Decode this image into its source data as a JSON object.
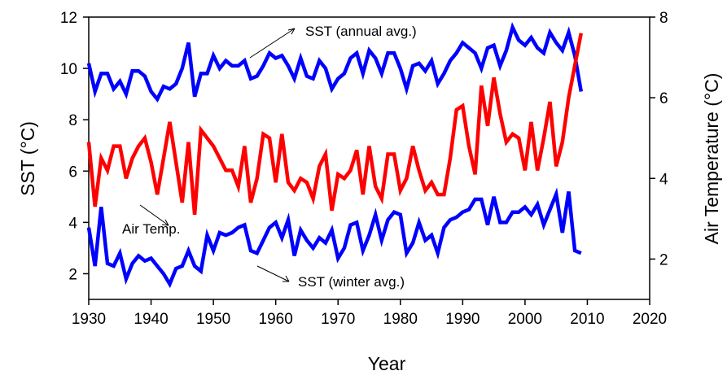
{
  "chart_data": {
    "type": "line",
    "xlabel": "Year",
    "ylabel_left": "SST (°C)",
    "ylabel_right": "Air Temperature (°C)",
    "xlim": [
      1930,
      2020
    ],
    "ylim_left": [
      1,
      12
    ],
    "ylim_right": [
      1,
      8
    ],
    "x_ticks": [
      "1930",
      "1940",
      "1950",
      "1960",
      "1970",
      "1980",
      "1990",
      "2000",
      "2010",
      "2020"
    ],
    "y_ticks_left": [
      "2",
      "4",
      "6",
      "8",
      "10",
      "12"
    ],
    "y_ticks_right": [
      "2",
      "4",
      "6",
      "8"
    ],
    "grid": false,
    "x": [
      1930,
      1931,
      1932,
      1933,
      1934,
      1935,
      1936,
      1937,
      1938,
      1939,
      1940,
      1941,
      1942,
      1943,
      1944,
      1945,
      1946,
      1947,
      1948,
      1949,
      1950,
      1951,
      1952,
      1953,
      1954,
      1955,
      1956,
      1957,
      1958,
      1959,
      1960,
      1961,
      1962,
      1963,
      1964,
      1965,
      1966,
      1967,
      1968,
      1969,
      1970,
      1971,
      1972,
      1973,
      1974,
      1975,
      1976,
      1977,
      1978,
      1979,
      1980,
      1981,
      1982,
      1983,
      1984,
      1985,
      1986,
      1987,
      1988,
      1989,
      1990,
      1991,
      1992,
      1993,
      1994,
      1995,
      1996,
      1997,
      1998,
      1999,
      2000,
      2001,
      2002,
      2003,
      2004,
      2005,
      2006,
      2007,
      2008,
      2009
    ],
    "series": [
      {
        "axis": "left",
        "color": "#0000ff",
        "values": [
          10.2,
          9.1,
          9.8,
          9.8,
          9.2,
          9.5,
          9.0,
          9.9,
          9.9,
          9.7,
          9.1,
          8.8,
          9.3,
          9.2,
          9.4,
          10.0,
          11.0,
          8.9,
          9.8,
          9.8,
          10.5,
          10.0,
          10.3,
          10.1,
          10.1,
          10.3,
          9.6,
          9.7,
          10.1,
          10.6,
          10.4,
          10.5,
          10.1,
          9.6,
          10.4,
          9.7,
          9.6,
          10.3,
          10.0,
          9.2,
          9.6,
          9.8,
          10.4,
          10.6,
          9.8,
          10.7,
          10.4,
          9.8,
          10.6,
          10.6,
          10.0,
          9.2,
          10.1,
          10.2,
          9.9,
          10.3,
          9.4,
          9.8,
          10.3,
          10.6,
          11.0,
          10.8,
          10.6,
          10.0,
          10.8,
          10.9,
          10.1,
          10.7,
          11.6,
          11.1,
          10.9,
          11.2,
          10.8,
          10.6,
          11.4,
          11.0,
          10.7,
          11.4,
          10.5,
          9.1
        ]
      },
      {
        "axis": "right",
        "color": "#ff0000",
        "values": [
          4.9,
          3.3,
          4.5,
          4.2,
          4.8,
          4.8,
          4.0,
          4.5,
          4.8,
          5.0,
          4.4,
          3.6,
          4.5,
          5.4,
          4.4,
          3.4,
          4.9,
          3.1,
          5.2,
          5.0,
          4.8,
          4.5,
          4.2,
          4.2,
          3.8,
          4.8,
          3.4,
          4.0,
          5.1,
          5.0,
          3.9,
          5.1,
          3.9,
          3.7,
          4.0,
          3.9,
          3.5,
          4.3,
          4.6,
          3.2,
          4.1,
          4.0,
          4.2,
          4.7,
          3.6,
          4.8,
          3.8,
          3.5,
          4.6,
          4.6,
          3.7,
          4.0,
          4.8,
          4.2,
          3.7,
          3.9,
          3.6,
          3.6,
          4.5,
          5.7,
          5.8,
          4.8,
          4.1,
          6.3,
          5.3,
          6.5,
          5.6,
          4.9,
          5.1,
          5.0,
          4.2,
          5.4,
          4.2,
          5.0,
          5.9,
          4.3,
          4.9,
          6.0,
          6.8,
          7.6
        ]
      },
      {
        "axis": "left",
        "color": "#0000ff",
        "values": [
          3.8,
          2.3,
          4.6,
          2.4,
          2.3,
          2.8,
          1.8,
          2.4,
          2.7,
          2.5,
          2.6,
          2.3,
          2.0,
          1.6,
          2.2,
          2.3,
          2.9,
          2.3,
          2.1,
          3.5,
          2.9,
          3.6,
          3.5,
          3.6,
          3.8,
          3.9,
          2.9,
          2.8,
          3.3,
          3.8,
          4.0,
          3.4,
          4.1,
          2.7,
          3.7,
          3.3,
          3.0,
          3.4,
          3.2,
          3.7,
          2.6,
          3.0,
          3.9,
          4.0,
          2.9,
          3.5,
          4.3,
          3.3,
          4.1,
          4.4,
          4.3,
          2.8,
          3.2,
          4.0,
          3.3,
          3.5,
          2.8,
          3.8,
          4.1,
          4.2,
          4.4,
          4.5,
          4.9,
          4.9,
          3.9,
          5.0,
          4.0,
          4.0,
          4.4,
          4.4,
          4.6,
          4.3,
          4.7,
          3.9,
          4.5,
          5.1,
          3.6,
          5.2,
          2.9,
          2.8
        ]
      }
    ],
    "annotations": [
      {
        "text": "SST (annual avg.)"
      },
      {
        "text": "Air Temp."
      },
      {
        "text": "SST (winter avg.)"
      }
    ]
  }
}
